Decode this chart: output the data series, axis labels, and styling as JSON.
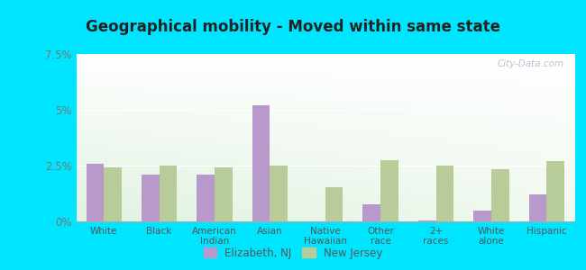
{
  "title": "Geographical mobility - Moved within same state",
  "categories": [
    "White",
    "Black",
    "American\nIndian",
    "Asian",
    "Native\nHawaiian",
    "Other\nrace",
    "2+\nraces",
    "White\nalone",
    "Hispanic"
  ],
  "elizabeth_values": [
    2.6,
    2.1,
    2.1,
    5.2,
    0.0,
    0.75,
    0.05,
    0.5,
    1.2
  ],
  "nj_values": [
    2.4,
    2.5,
    2.4,
    2.5,
    1.55,
    2.75,
    2.5,
    2.35,
    2.7
  ],
  "elizabeth_color": "#b899cc",
  "nj_color": "#b8cc99",
  "background_color": "#00e5ff",
  "ylim": [
    0,
    7.5
  ],
  "yticks": [
    0,
    2.5,
    5.0,
    7.5
  ],
  "ytick_labels": [
    "0%",
    "2.5%",
    "5%",
    "7.5%"
  ],
  "legend_elizabeth": "Elizabeth, NJ",
  "legend_nj": "New Jersey",
  "bar_width": 0.32,
  "watermark": "City-Data.com"
}
